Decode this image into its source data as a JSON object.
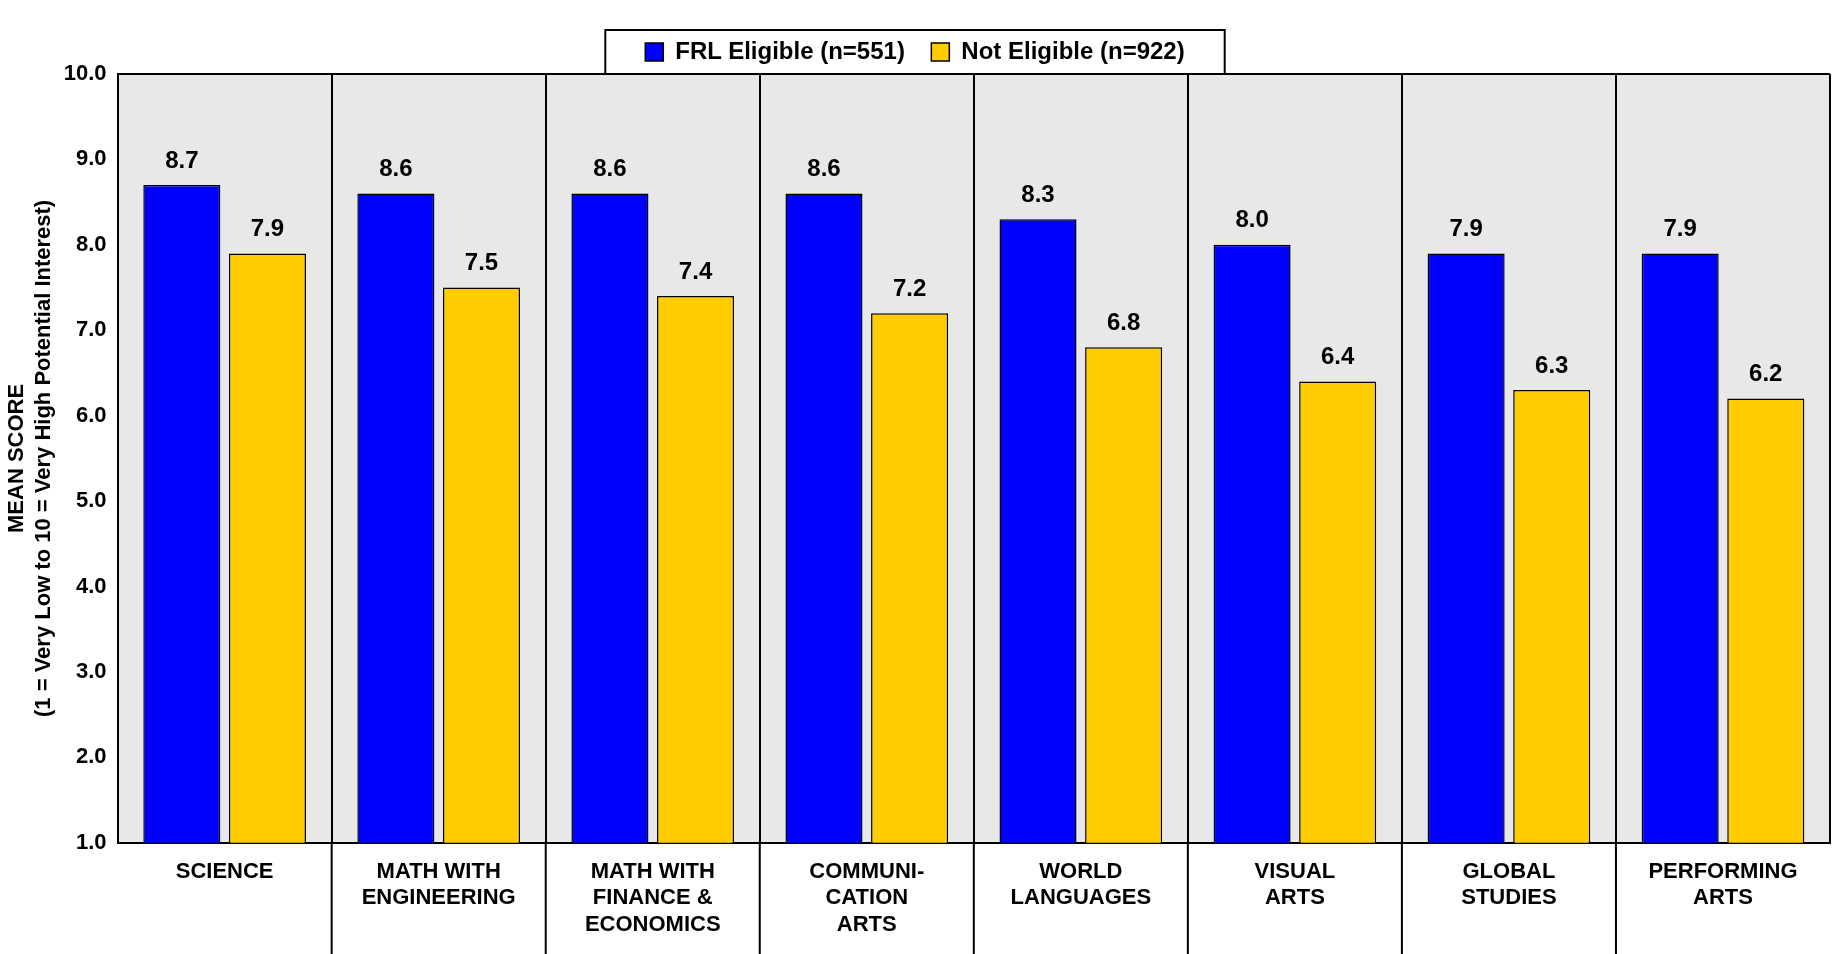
{
  "chart_data": {
    "type": "bar",
    "ylabel": "MEAN SCORE\n(1 = Very Low to 10 = Very High Potential Interest)",
    "categories": [
      "SCIENCE",
      "MATH WITH\nENGINEERING",
      "MATH WITH\nFINANCE &\nECONOMICS",
      "COMMUNI-\nCATION\nARTS",
      "WORLD\nLANGUAGES",
      "VISUAL\nARTS",
      "GLOBAL\nSTUDIES",
      "PERFORMING\nARTS"
    ],
    "series": [
      {
        "name": "FRL Eligible (n=551)",
        "color": "#0000ff",
        "values": [
          8.7,
          8.6,
          8.6,
          8.6,
          8.3,
          8.0,
          7.9,
          7.9
        ]
      },
      {
        "name": "Not Eligible (n=922)",
        "color": "#ffcc00",
        "values": [
          7.9,
          7.5,
          7.4,
          7.2,
          6.8,
          6.4,
          6.3,
          6.2
        ]
      }
    ],
    "ylim": [
      1,
      10
    ],
    "yticks": [
      {
        "value": 1,
        "label": "1.0"
      },
      {
        "value": 2,
        "label": "2.0"
      },
      {
        "value": 3,
        "label": "3.0"
      },
      {
        "value": 4,
        "label": "4.0"
      },
      {
        "value": 5,
        "label": "5.0"
      },
      {
        "value": 6,
        "label": "6.0"
      },
      {
        "value": 7,
        "label": "7.0"
      },
      {
        "value": 8,
        "label": "8.0"
      },
      {
        "value": 9,
        "label": "9.0"
      },
      {
        "value": 10,
        "label": "10.0"
      }
    ],
    "grid": "x",
    "legend": "top",
    "value_labels": [
      [
        "8.7",
        "8.6",
        "8.6",
        "8.6",
        "8.3",
        "8.0",
        "7.9",
        "7.9"
      ],
      [
        "7.9",
        "7.5",
        "7.4",
        "7.2",
        "6.8",
        "6.4",
        "6.3",
        "6.2"
      ]
    ]
  }
}
